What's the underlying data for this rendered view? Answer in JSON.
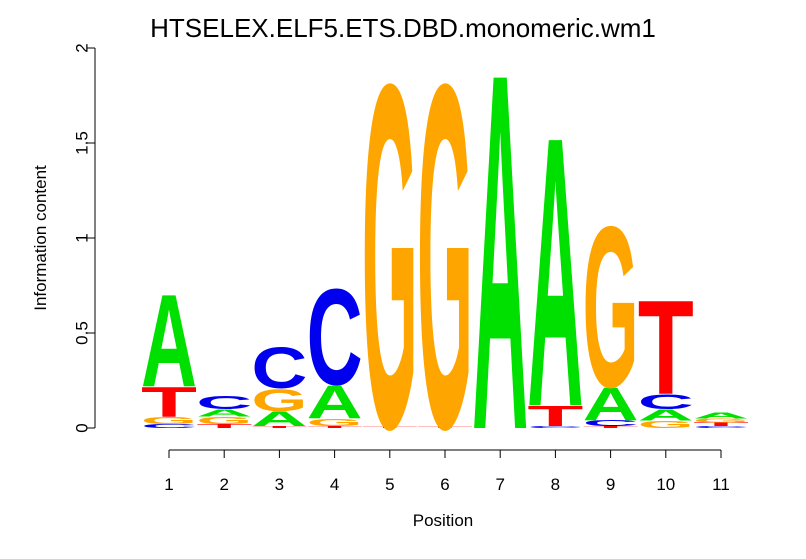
{
  "chart_data": {
    "type": "sequence-logo",
    "title": "HTSELEX.ELF5.ETS.DBD.monomeric.wm1",
    "xlabel": "Position",
    "ylabel": "Information content",
    "ylim": [
      0,
      2
    ],
    "yticks": [
      "0",
      "0.5",
      "1",
      "1.5",
      "2"
    ],
    "positions": [
      "1",
      "2",
      "3",
      "4",
      "5",
      "6",
      "7",
      "8",
      "9",
      "10",
      "11"
    ],
    "colors": {
      "A": "#00e000",
      "C": "#0000ee",
      "G": "#ffa500",
      "T": "#ff0000"
    },
    "stacks": [
      [
        {
          "base": "C",
          "height": 0.02
        },
        {
          "base": "G",
          "height": 0.04
        },
        {
          "base": "T",
          "height": 0.16
        },
        {
          "base": "A",
          "height": 0.5
        }
      ],
      [
        {
          "base": "T",
          "height": 0.02
        },
        {
          "base": "G",
          "height": 0.04
        },
        {
          "base": "A",
          "height": 0.04
        },
        {
          "base": "C",
          "height": 0.07
        }
      ],
      [
        {
          "base": "T",
          "height": 0.01
        },
        {
          "base": "A",
          "height": 0.08
        },
        {
          "base": "G",
          "height": 0.12
        },
        {
          "base": "C",
          "height": 0.22
        }
      ],
      [
        {
          "base": "T",
          "height": 0.01
        },
        {
          "base": "G",
          "height": 0.04
        },
        {
          "base": "A",
          "height": 0.18
        },
        {
          "base": "C",
          "height": 0.52
        }
      ],
      [
        {
          "base": "T",
          "height": 0.01
        },
        {
          "base": "G",
          "height": 1.86
        }
      ],
      [
        {
          "base": "T",
          "height": 0.01
        },
        {
          "base": "G",
          "height": 1.86
        }
      ],
      [
        {
          "base": "A",
          "height": 1.93
        }
      ],
      [
        {
          "base": "C",
          "height": 0.01
        },
        {
          "base": "T",
          "height": 0.11
        },
        {
          "base": "A",
          "height": 1.46
        }
      ],
      [
        {
          "base": "T",
          "height": 0.01
        },
        {
          "base": "C",
          "height": 0.03
        },
        {
          "base": "A",
          "height": 0.18
        },
        {
          "base": "G",
          "height": 0.87
        }
      ],
      [
        {
          "base": "G",
          "height": 0.04
        },
        {
          "base": "A",
          "height": 0.06
        },
        {
          "base": "C",
          "height": 0.08
        },
        {
          "base": "T",
          "height": 0.51
        }
      ],
      [
        {
          "base": "C",
          "height": 0.01
        },
        {
          "base": "T",
          "height": 0.02
        },
        {
          "base": "G",
          "height": 0.02
        },
        {
          "base": "A",
          "height": 0.03
        }
      ]
    ]
  }
}
